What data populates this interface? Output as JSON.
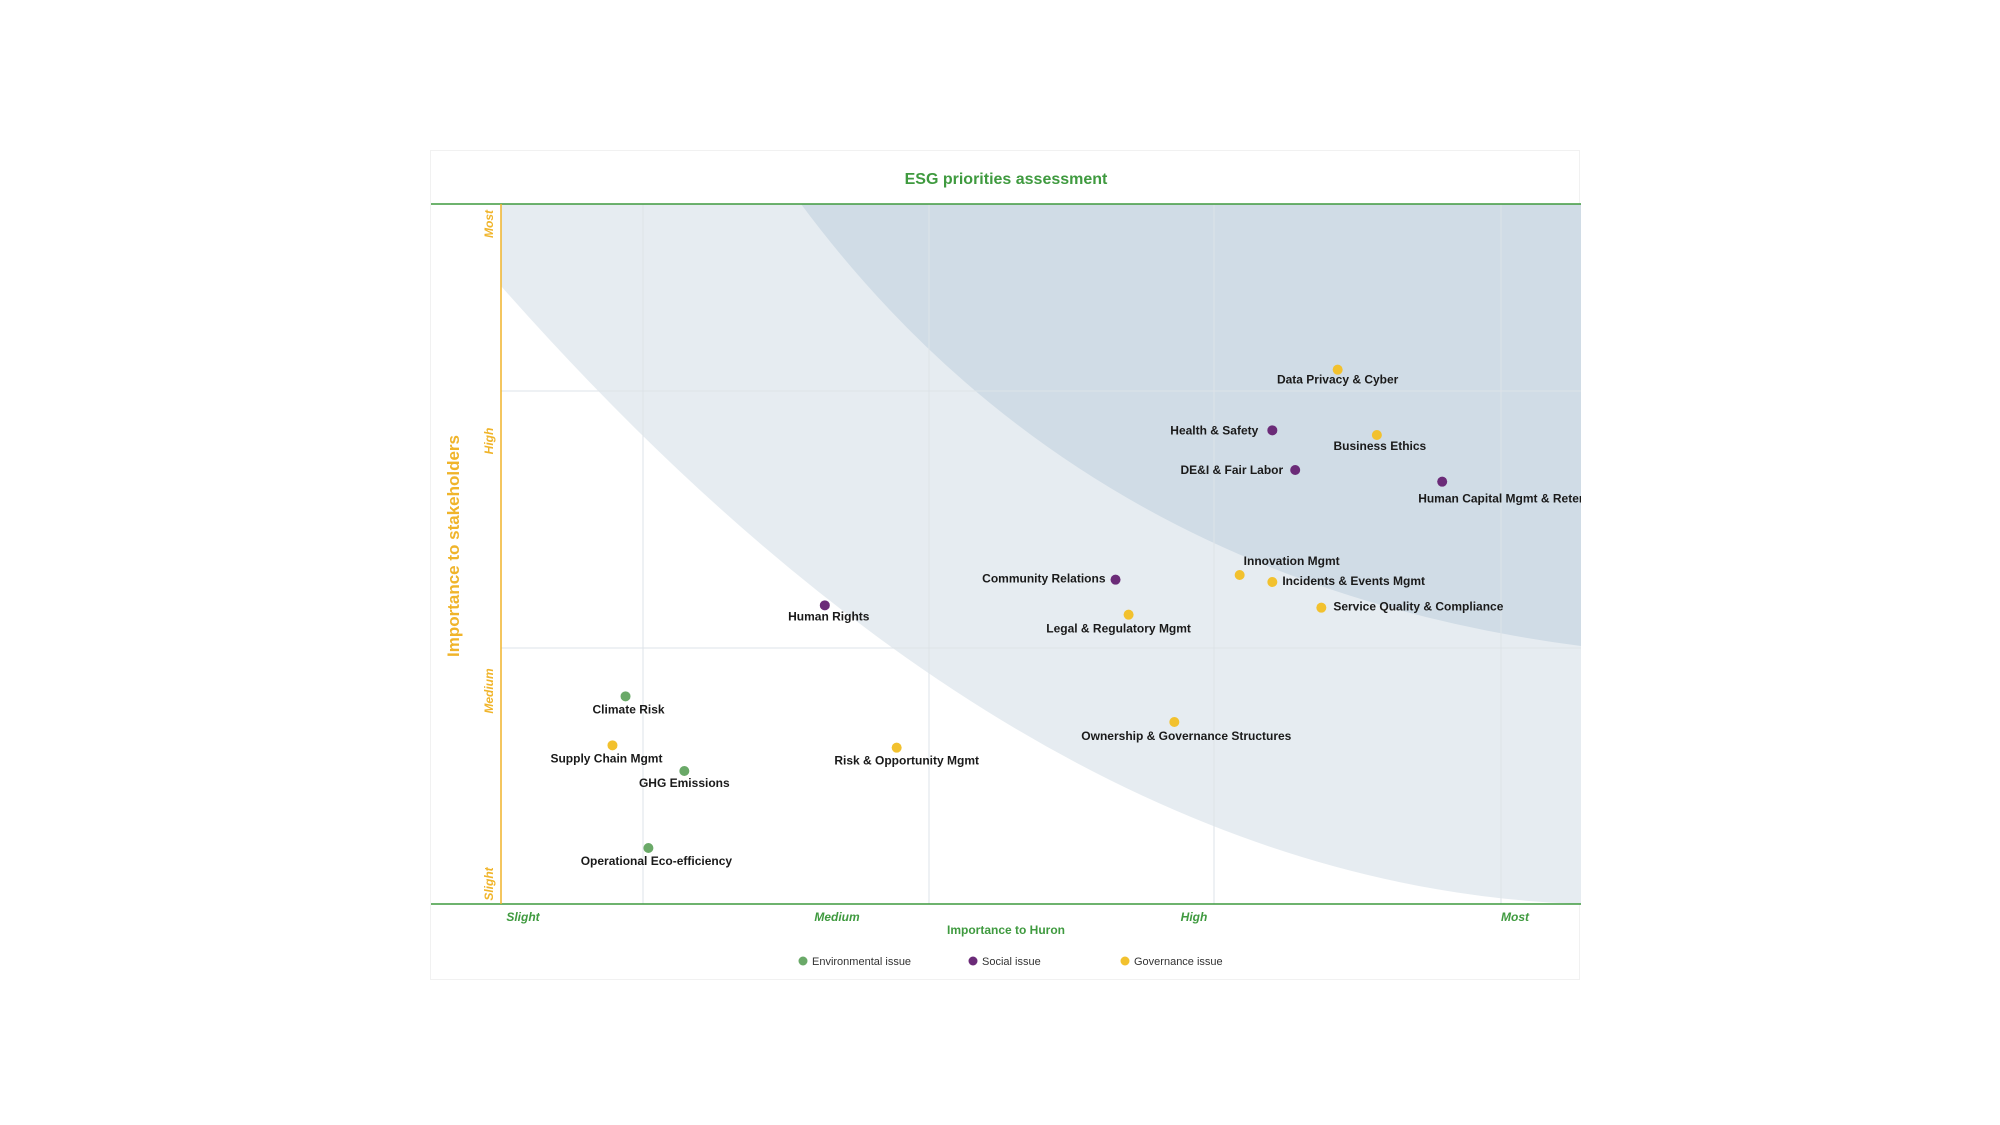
{
  "colors": {
    "environmental": "#6aa968",
    "social": "#6b2b78",
    "governance": "#f2c12e",
    "title_green": "#3f9a3f",
    "y_axis_gold": "#f0b42a",
    "band_light": "#e6ecf1",
    "band_dark": "#d0dce6"
  },
  "chart_data": {
    "type": "scatter",
    "title": "ESG priorities assessment",
    "xlabel": "Importance to Huron",
    "ylabel": "Importance to stakeholders",
    "xlim": [
      0,
      3.25
    ],
    "ylim": [
      0,
      3.0
    ],
    "x_ticks": [
      {
        "value": 0,
        "label": "Slight"
      },
      {
        "value": 1,
        "label": "Medium"
      },
      {
        "value": 2,
        "label": "High"
      },
      {
        "value": 3,
        "label": "Most"
      }
    ],
    "y_ticks": [
      {
        "value": 0,
        "label": "Slight"
      },
      {
        "value": 1.1,
        "label": "Medium"
      },
      {
        "value": 2.2,
        "label": "High"
      },
      {
        "value": 3.0,
        "label": "Most"
      }
    ],
    "grid": true,
    "legend_position": "bottom-center",
    "series": [
      {
        "name": "Environmental issue",
        "category": "environmental",
        "points": [
          {
            "label": "Climate Risk",
            "x": 0.32,
            "y": 0.89
          },
          {
            "label": "GHG Emissions",
            "x": 0.5,
            "y": 0.57
          },
          {
            "label": "Operational Eco-efficiency",
            "x": 0.39,
            "y": 0.24
          }
        ]
      },
      {
        "name": "Social issue",
        "category": "social",
        "points": [
          {
            "label": "Human Rights",
            "x": 0.93,
            "y": 1.28
          },
          {
            "label": "Community Relations",
            "x": 1.82,
            "y": 1.39
          },
          {
            "label": "Health & Safety",
            "x": 2.3,
            "y": 2.03
          },
          {
            "label": "DE&I & Fair Labor",
            "x": 2.37,
            "y": 1.86
          },
          {
            "label": "Human Capital Mgmt & Retention",
            "x": 2.82,
            "y": 1.81
          }
        ]
      },
      {
        "name": "Governance issue",
        "category": "governance",
        "points": [
          {
            "label": "Supply Chain Mgmt",
            "x": 0.28,
            "y": 0.68
          },
          {
            "label": "Risk & Opportunity Mgmt",
            "x": 1.15,
            "y": 0.67
          },
          {
            "label": "Legal & Regulatory Mgmt",
            "x": 1.86,
            "y": 1.24
          },
          {
            "label": "Ownership & Governance Structures",
            "x": 2.0,
            "y": 0.78
          },
          {
            "label": "Innovation Mgmt",
            "x": 2.2,
            "y": 1.41
          },
          {
            "label": "Incidents & Events Mgmt",
            "x": 2.3,
            "y": 1.38
          },
          {
            "label": "Service Quality & Compliance",
            "x": 2.45,
            "y": 1.27
          },
          {
            "label": "Data Privacy & Cyber",
            "x": 2.5,
            "y": 2.29
          },
          {
            "label": "Business Ethics",
            "x": 2.62,
            "y": 2.01
          }
        ]
      }
    ]
  }
}
